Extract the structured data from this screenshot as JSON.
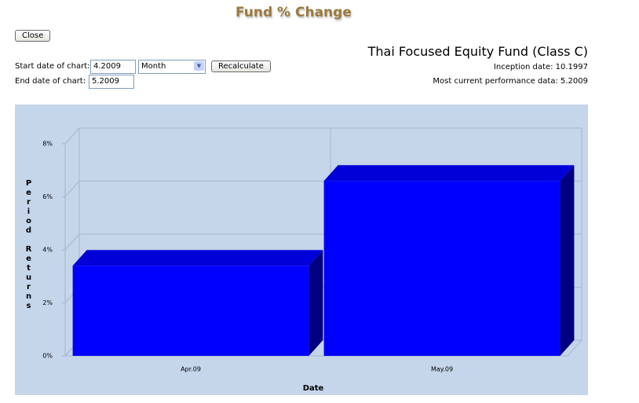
{
  "header": {
    "title": "Fund % Change",
    "close": "Close"
  },
  "form": {
    "start_label": "Start date of chart:",
    "start_value": "4.2009",
    "period": "Month",
    "recalculate": "Recalculate",
    "end_label": "End date of chart:",
    "end_value": "5.2009"
  },
  "fund": {
    "name": "Thai Focused Equity Fund (Class C)",
    "inception": "Inception date: 10.1997",
    "current": "Most current performance data: 5.2009"
  },
  "chart_data": {
    "type": "bar",
    "y_label": "Period Returns",
    "x_label": "Date",
    "categories": [
      "Apr.09",
      "May.09"
    ],
    "values": [
      3.4,
      6.6
    ],
    "color": "#0000ff",
    "ylim": [
      0,
      8
    ],
    "yticks": [
      {
        "value": 0,
        "label": "0%"
      },
      {
        "value": 2,
        "label": "2%"
      },
      {
        "value": 4,
        "label": "4%"
      },
      {
        "value": 6,
        "label": "6%"
      },
      {
        "value": 8,
        "label": "8%"
      }
    ],
    "grid": true
  }
}
